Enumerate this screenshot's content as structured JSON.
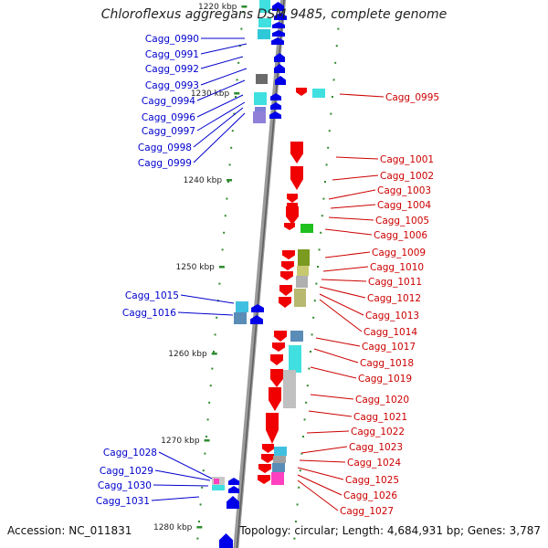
{
  "title": "Chloroflexus aggregans DSM 9485, complete genome",
  "accession": "Accession: NC_011831",
  "summary": "Topology: circular; Length: 4,684,931 bp; Genes: 3,787",
  "colors": {
    "backbone": "#808080",
    "tick": "#2e8b2e",
    "reverse_strand_label": "#0000cc",
    "forward_strand_label": "#cc0000"
  },
  "scale_labels": [
    {
      "kbp": 1220,
      "label": "1220 kbp"
    },
    {
      "kbp": 1230,
      "label": "1230 kbp"
    },
    {
      "kbp": 1240,
      "label": "1240 kbp"
    },
    {
      "kbp": 1250,
      "label": "1250 kbp"
    },
    {
      "kbp": 1260,
      "label": "1260 kbp"
    },
    {
      "kbp": 1270,
      "label": "1270 kbp"
    },
    {
      "kbp": 1280,
      "label": "1280 kbp"
    }
  ],
  "genes_reverse": [
    {
      "name": "Cagg_0990"
    },
    {
      "name": "Cagg_0991"
    },
    {
      "name": "Cagg_0992"
    },
    {
      "name": "Cagg_0993"
    },
    {
      "name": "Cagg_0994"
    },
    {
      "name": "Cagg_0996"
    },
    {
      "name": "Cagg_0997"
    },
    {
      "name": "Cagg_0998"
    },
    {
      "name": "Cagg_0999"
    },
    {
      "name": "Cagg_1015"
    },
    {
      "name": "Cagg_1016"
    },
    {
      "name": "Cagg_1028"
    },
    {
      "name": "Cagg_1029"
    },
    {
      "name": "Cagg_1030"
    },
    {
      "name": "Cagg_1031"
    }
  ],
  "genes_forward": [
    {
      "name": "Cagg_0995"
    },
    {
      "name": "Cagg_1001"
    },
    {
      "name": "Cagg_1002"
    },
    {
      "name": "Cagg_1003"
    },
    {
      "name": "Cagg_1004"
    },
    {
      "name": "Cagg_1005"
    },
    {
      "name": "Cagg_1006"
    },
    {
      "name": "Cagg_1009"
    },
    {
      "name": "Cagg_1010"
    },
    {
      "name": "Cagg_1011"
    },
    {
      "name": "Cagg_1012"
    },
    {
      "name": "Cagg_1013"
    },
    {
      "name": "Cagg_1014"
    },
    {
      "name": "Cagg_1017"
    },
    {
      "name": "Cagg_1018"
    },
    {
      "name": "Cagg_1019"
    },
    {
      "name": "Cagg_1020"
    },
    {
      "name": "Cagg_1021"
    },
    {
      "name": "Cagg_1022"
    },
    {
      "name": "Cagg_1023"
    },
    {
      "name": "Cagg_1024"
    },
    {
      "name": "Cagg_1025"
    },
    {
      "name": "Cagg_1026"
    },
    {
      "name": "Cagg_1027"
    }
  ]
}
